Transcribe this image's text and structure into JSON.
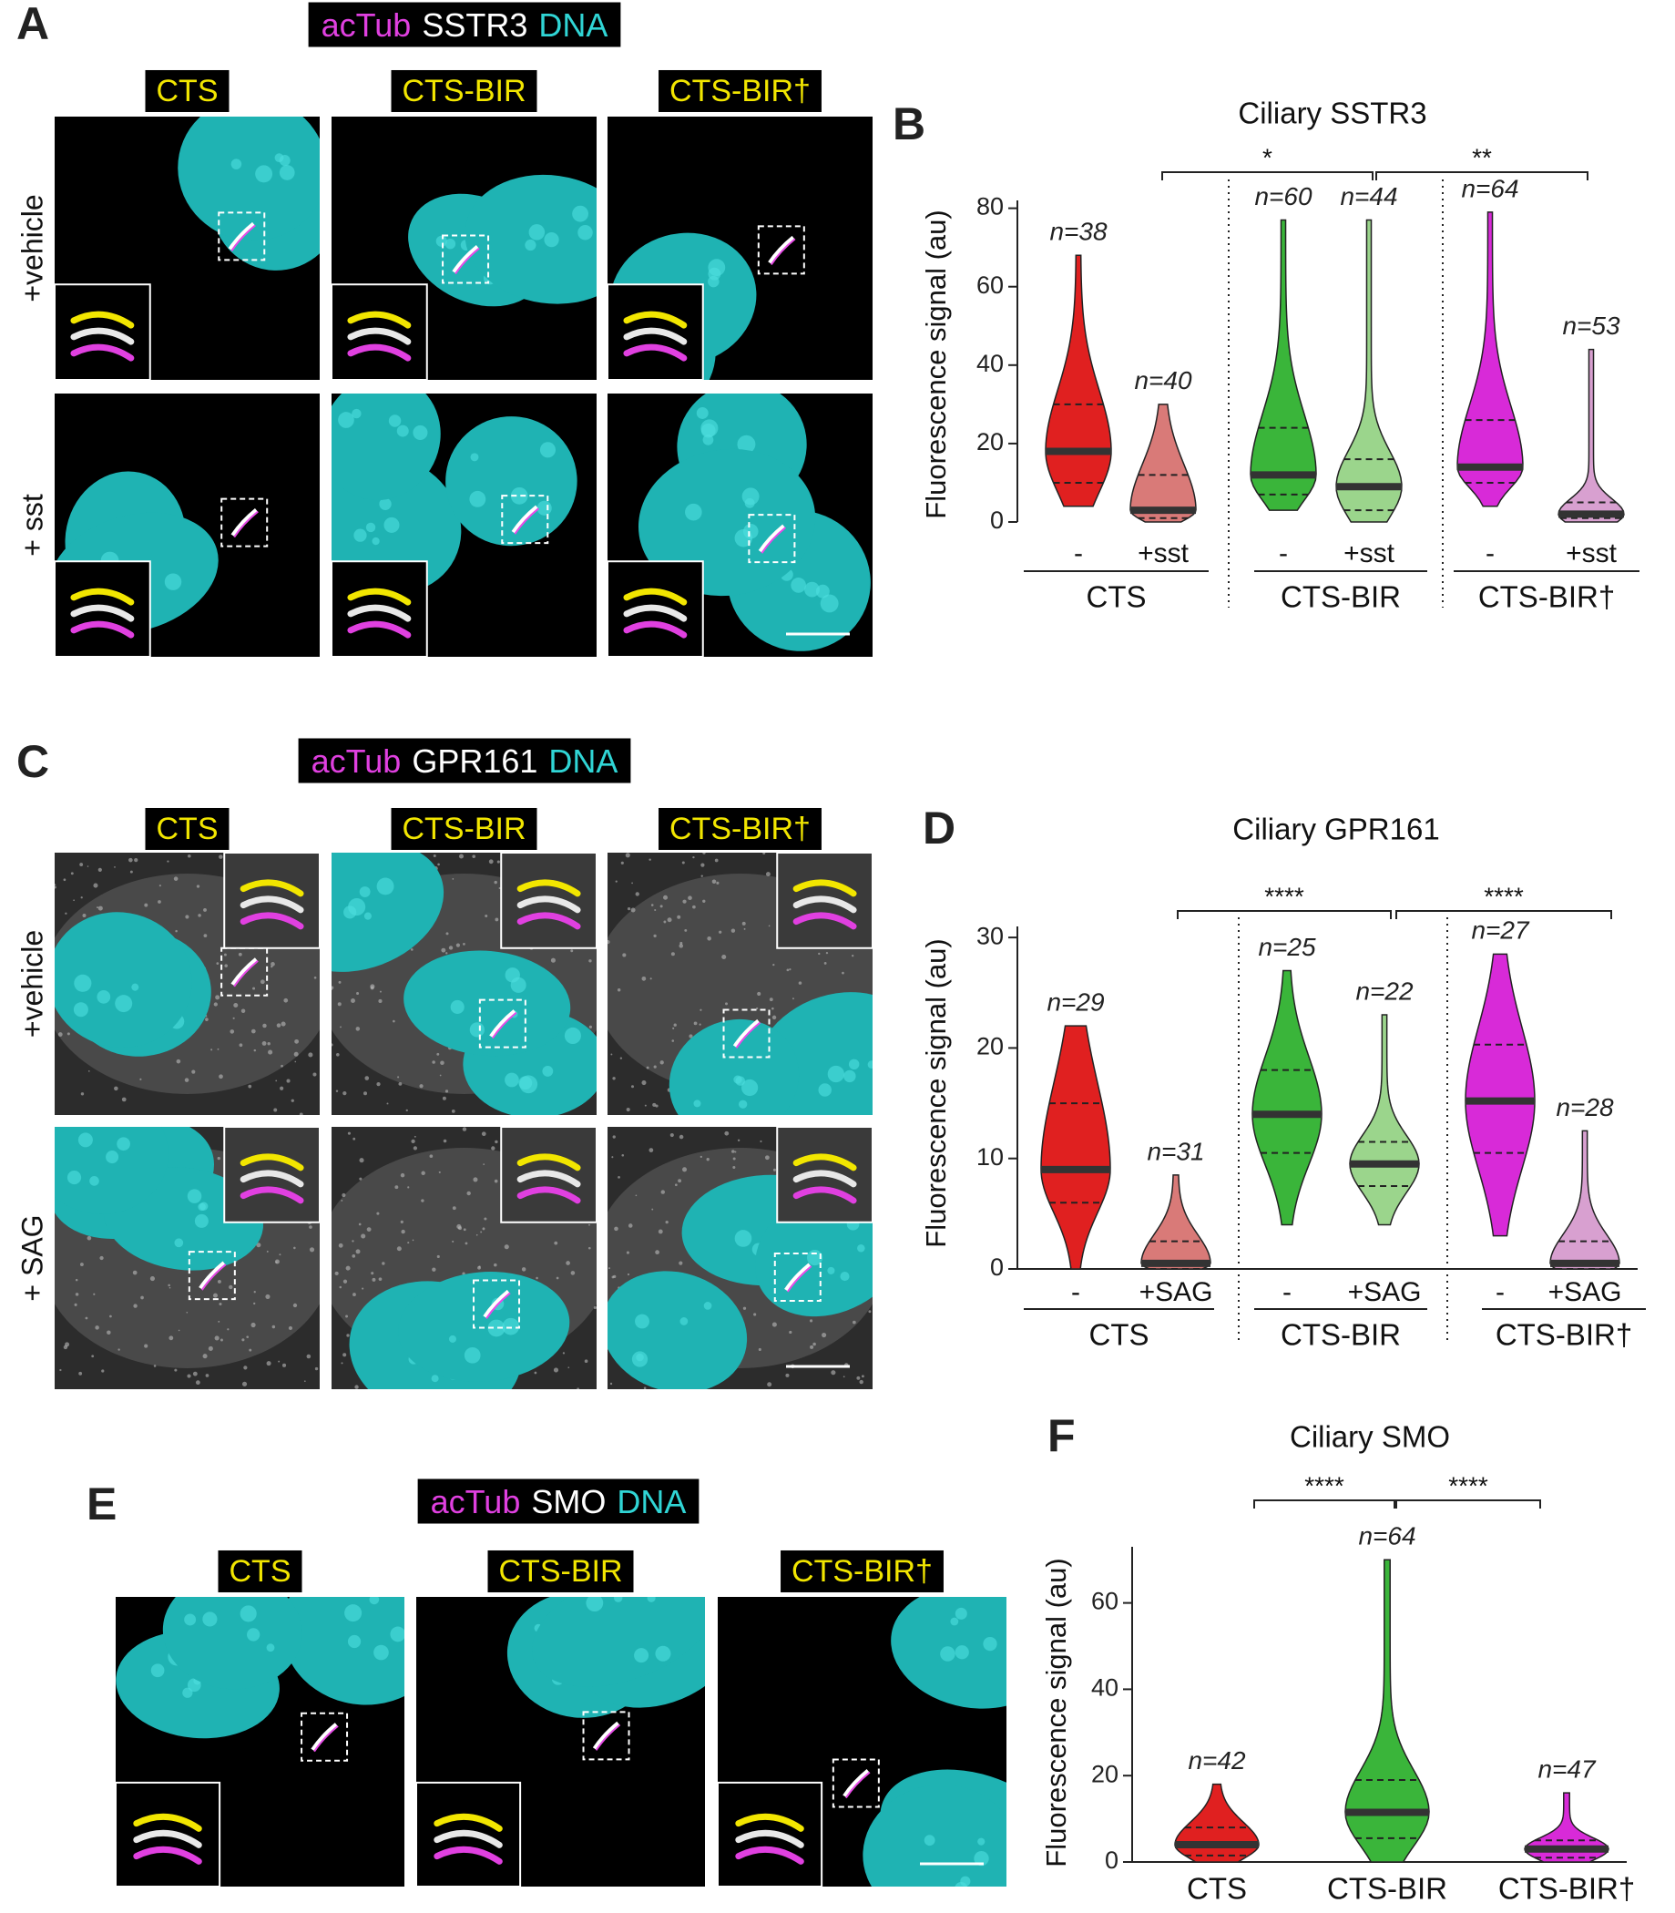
{
  "micrographs": [
    {
      "panel": "A",
      "stain": [
        "acTub",
        "SSTR3",
        "DNA"
      ],
      "columns": [
        "CTS",
        "CTS-BIR",
        "CTS-BIR†"
      ],
      "rows": [
        "+vehicle",
        "+ sst"
      ]
    },
    {
      "panel": "C",
      "stain": [
        "acTub",
        "GPR161",
        "DNA"
      ],
      "columns": [
        "CTS",
        "CTS-BIR",
        "CTS-BIR†"
      ],
      "rows": [
        "+vehicle",
        "+ SAG"
      ]
    },
    {
      "panel": "E",
      "stain": [
        "acTub",
        "SMO",
        "DNA"
      ],
      "columns": [
        "CTS",
        "CTS-BIR",
        "CTS-BIR†"
      ]
    }
  ],
  "chart_data": [
    {
      "type": "violin",
      "panel": "B",
      "title": "Ciliary SSTR3",
      "y_label": "Fluorescence signal (au)",
      "ylim": [
        0,
        82
      ],
      "yticks": [
        0,
        20,
        40,
        60,
        80
      ],
      "categories": [
        "-",
        "+sst",
        "-",
        "+sst",
        "-",
        "+sst"
      ],
      "groups": [
        "CTS",
        "CTS-BIR",
        "CTS-BIR†"
      ],
      "significance": [
        {
          "label": "*"
        },
        {
          "label": "**"
        }
      ],
      "violins": [
        {
          "n_label": "n=38",
          "color": "#e02020",
          "min": 4,
          "q1": 10,
          "median": 18,
          "q3": 30,
          "max": 68
        },
        {
          "n_label": "n=40",
          "color": "#d97a78",
          "min": 0,
          "q1": 1,
          "median": 3,
          "q3": 12,
          "max": 30
        },
        {
          "n_label": "n=60",
          "color": "#3ab53a",
          "min": 3,
          "q1": 7,
          "median": 12,
          "q3": 24,
          "max": 77
        },
        {
          "n_label": "n=44",
          "color": "#9bd58c",
          "min": 0,
          "q1": 3,
          "median": 9,
          "q3": 16,
          "max": 77
        },
        {
          "n_label": "n=64",
          "color": "#d82ad8",
          "min": 4,
          "q1": 10,
          "median": 14,
          "q3": 26,
          "max": 79
        },
        {
          "n_label": "n=53",
          "color": "#d8a0d0",
          "min": 0,
          "q1": 1,
          "median": 2,
          "q3": 5,
          "max": 44
        }
      ]
    },
    {
      "type": "violin",
      "panel": "D",
      "title": "Ciliary GPR161",
      "y_label": "Fluorescence signal (au)",
      "ylim": [
        0,
        31
      ],
      "yticks": [
        0,
        10,
        20,
        30
      ],
      "categories": [
        "-",
        "+SAG",
        "-",
        "+SAG",
        "-",
        "+SAG"
      ],
      "groups": [
        "CTS",
        "CTS-BIR",
        "CTS-BIR†"
      ],
      "significance": [
        {
          "label": "****"
        },
        {
          "label": "****"
        }
      ],
      "violins": [
        {
          "n_label": "n=29",
          "color": "#e02020",
          "min": 0,
          "q1": 6,
          "median": 9,
          "q3": 15,
          "max": 22
        },
        {
          "n_label": "n=31",
          "color": "#d97a78",
          "min": 0,
          "q1": 0,
          "median": 0.5,
          "q3": 2.5,
          "max": 8.5
        },
        {
          "n_label": "n=25",
          "color": "#3ab53a",
          "min": 4,
          "q1": 10.5,
          "median": 14,
          "q3": 18,
          "max": 27
        },
        {
          "n_label": "n=22",
          "color": "#9bd58c",
          "min": 4,
          "q1": 7.5,
          "median": 9.5,
          "q3": 11.5,
          "max": 23
        },
        {
          "n_label": "n=27",
          "color": "#d82ad8",
          "min": 3,
          "q1": 10.5,
          "median": 15.2,
          "q3": 20.3,
          "max": 28.5
        },
        {
          "n_label": "n=28",
          "color": "#d8a0d0",
          "min": 0,
          "q1": 0,
          "median": 0.5,
          "q3": 2.5,
          "max": 12.5
        }
      ]
    },
    {
      "type": "violin",
      "panel": "F",
      "title": "Ciliary SMO",
      "y_label": "Fluorescence signal (au)",
      "ylim": [
        0,
        73
      ],
      "yticks": [
        0,
        20,
        40,
        60
      ],
      "categories": [
        "CTS",
        "CTS-BIR",
        "CTS-BIR†"
      ],
      "significance": [
        {
          "label": "****"
        },
        {
          "label": "****"
        }
      ],
      "violins": [
        {
          "n_label": "n=42",
          "color": "#e02020",
          "min": 0,
          "q1": 1.5,
          "median": 4,
          "q3": 8,
          "max": 18
        },
        {
          "n_label": "n=64",
          "color": "#3ab53a",
          "min": 0,
          "q1": 5.5,
          "median": 11.5,
          "q3": 19,
          "max": 70
        },
        {
          "n_label": "n=47",
          "color": "#d82ad8",
          "min": 0,
          "q1": 1,
          "median": 3,
          "q3": 5,
          "max": 16
        }
      ]
    }
  ]
}
